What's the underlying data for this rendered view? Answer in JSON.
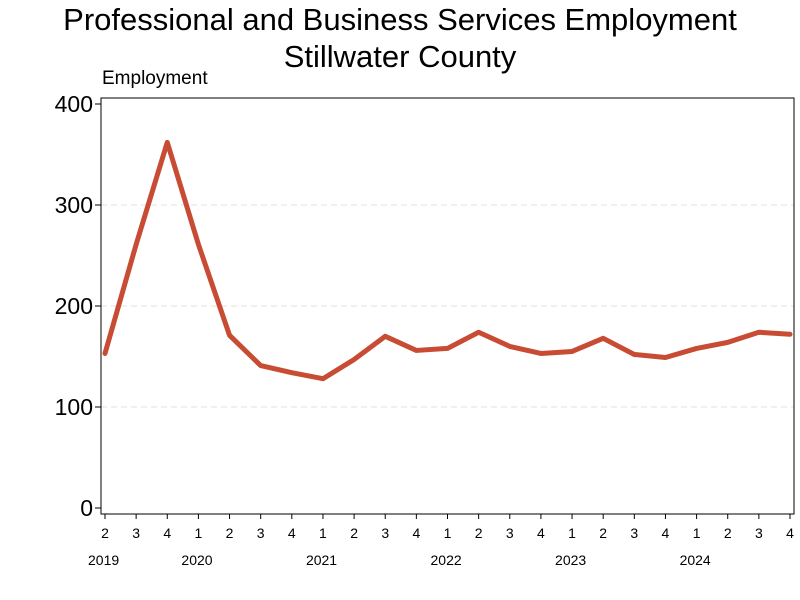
{
  "chart_data": {
    "type": "line",
    "title": "Professional and Business Services Employment",
    "subtitle": "Stillwater County",
    "ylabel": "Employment",
    "xlabel": "",
    "ylim": [
      0,
      400
    ],
    "yticks": [
      0,
      100,
      200,
      300,
      400
    ],
    "grid": "horizontal dashed",
    "x": [
      "2019 Q2",
      "2019 Q3",
      "2019 Q4",
      "2020 Q1",
      "2020 Q2",
      "2020 Q3",
      "2020 Q4",
      "2021 Q1",
      "2021 Q2",
      "2021 Q3",
      "2021 Q4",
      "2022 Q1",
      "2022 Q2",
      "2022 Q3",
      "2022 Q4",
      "2023 Q1",
      "2023 Q2",
      "2023 Q3",
      "2023 Q4",
      "2024 Q1",
      "2024 Q2",
      "2024 Q3",
      "2024 Q4"
    ],
    "quarter_labels": [
      "2",
      "3",
      "4",
      "1",
      "2",
      "3",
      "4",
      "1",
      "2",
      "3",
      "4",
      "1",
      "2",
      "3",
      "4",
      "1",
      "2",
      "3",
      "4",
      "1",
      "2",
      "3",
      "4"
    ],
    "year_labels": [
      {
        "label": "2019",
        "quarter_index": 0
      },
      {
        "label": "2020",
        "quarter_index": 3
      },
      {
        "label": "2021",
        "quarter_index": 7
      },
      {
        "label": "2022",
        "quarter_index": 11
      },
      {
        "label": "2023",
        "quarter_index": 15
      },
      {
        "label": "2024",
        "quarter_index": 19
      }
    ],
    "series": [
      {
        "values": [
          153,
          261,
          362,
          261,
          171,
          141,
          134,
          128,
          147,
          170,
          156,
          158,
          174,
          160,
          153,
          155,
          168,
          152,
          149,
          158,
          164,
          174,
          172
        ],
        "color": "#c84b33"
      }
    ]
  }
}
